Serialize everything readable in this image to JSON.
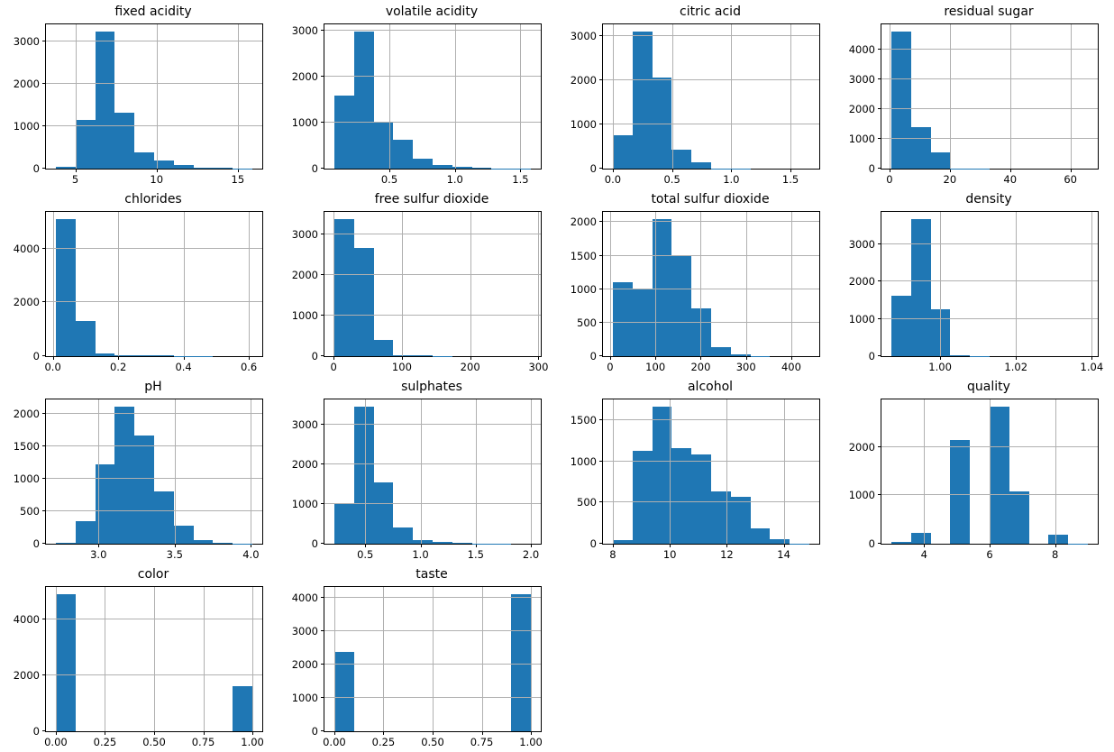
{
  "figure": {
    "background": "#ffffff",
    "grid_rows": 4,
    "grid_cols": 4
  },
  "style": {
    "bar_color": "#1f77b4",
    "grid_color": "#b0b0b0",
    "spine_color": "#000000",
    "text_color": "#000000"
  },
  "chart_data": [
    {
      "type": "histogram",
      "title": "fixed acidity",
      "bin_start": 3.8,
      "bin_width": 1.21,
      "counts": [
        46,
        1147,
        3250,
        1330,
        380,
        183,
        80,
        30,
        12,
        5
      ],
      "xlim": [
        3.195,
        16.505
      ],
      "ylim": [
        0,
        3412
      ],
      "xticks": [
        5,
        10,
        15
      ],
      "xtick_labels": [
        "5",
        "10",
        "15"
      ],
      "yticks": [
        0,
        1000,
        2000,
        3000
      ],
      "ytick_labels": [
        "0",
        "1000",
        "2000",
        "3000"
      ],
      "grid": true
    },
    {
      "type": "histogram",
      "title": "volatile acidity",
      "bin_start": 0.08,
      "bin_width": 0.15,
      "counts": [
        1590,
        2980,
        990,
        620,
        220,
        75,
        30,
        15,
        5,
        3
      ],
      "xlim": [
        0.005,
        1.655
      ],
      "ylim": [
        0,
        3129
      ],
      "xticks": [
        0.5,
        1.0,
        1.5
      ],
      "xtick_labels": [
        "0.5",
        "1.0",
        "1.5"
      ],
      "yticks": [
        0,
        1000,
        2000,
        3000
      ],
      "ytick_labels": [
        "0",
        "1000",
        "2000",
        "3000"
      ],
      "grid": true
    },
    {
      "type": "histogram",
      "title": "citric acid",
      "bin_start": 0.0,
      "bin_width": 0.166,
      "counts": [
        760,
        3110,
        2060,
        430,
        140,
        6,
        2,
        1,
        0,
        1
      ],
      "xlim": [
        -0.083,
        1.743
      ],
      "ylim": [
        0,
        3266
      ],
      "xticks": [
        0.0,
        0.5,
        1.0,
        1.5
      ],
      "xtick_labels": [
        "0.0",
        "0.5",
        "1.0",
        "1.5"
      ],
      "yticks": [
        0,
        1000,
        2000,
        3000
      ],
      "ytick_labels": [
        "0",
        "1000",
        "2000",
        "3000"
      ],
      "grid": true
    },
    {
      "type": "histogram",
      "title": "residual sugar",
      "bin_start": 0.6,
      "bin_width": 6.52,
      "counts": [
        4630,
        1400,
        550,
        12,
        3,
        1,
        0,
        0,
        0,
        1
      ],
      "xlim": [
        -2.66,
        69.06
      ],
      "ylim": [
        0,
        4862
      ],
      "xticks": [
        0,
        20,
        40,
        60
      ],
      "xtick_labels": [
        "0",
        "20",
        "40",
        "60"
      ],
      "yticks": [
        0,
        1000,
        2000,
        3000,
        4000
      ],
      "ytick_labels": [
        "0",
        "1000",
        "2000",
        "3000",
        "4000"
      ],
      "grid": true
    },
    {
      "type": "histogram",
      "title": "chlorides",
      "bin_start": 0.009,
      "bin_width": 0.0602,
      "counts": [
        5100,
        1290,
        105,
        35,
        25,
        18,
        12,
        4,
        2,
        1
      ],
      "xlim": [
        -0.0211,
        0.6411
      ],
      "ylim": [
        0,
        5355
      ],
      "xticks": [
        0.0,
        0.2,
        0.4,
        0.6
      ],
      "xtick_labels": [
        "0.0",
        "0.2",
        "0.4",
        "0.6"
      ],
      "yticks": [
        0,
        2000,
        4000
      ],
      "ytick_labels": [
        "0",
        "2000",
        "4000"
      ],
      "grid": true
    },
    {
      "type": "histogram",
      "title": "free sulfur dioxide",
      "bin_start": 1.0,
      "bin_width": 28.8,
      "counts": [
        3390,
        2670,
        410,
        28,
        25,
        2,
        1,
        0,
        0,
        1
      ],
      "xlim": [
        -13.4,
        303.4
      ],
      "ylim": [
        0,
        3560
      ],
      "xticks": [
        0,
        100,
        200,
        300
      ],
      "xtick_labels": [
        "0",
        "100",
        "200",
        "300"
      ],
      "yticks": [
        0,
        1000,
        2000,
        3000
      ],
      "ytick_labels": [
        "0",
        "1000",
        "2000",
        "3000"
      ],
      "grid": true
    },
    {
      "type": "histogram",
      "title": "total sulfur dioxide",
      "bin_start": 6.0,
      "bin_width": 43.4,
      "counts": [
        1100,
        990,
        2050,
        1510,
        720,
        140,
        22,
        2,
        0,
        1
      ],
      "xlim": [
        -15.7,
        461.7
      ],
      "ylim": [
        0,
        2153
      ],
      "xticks": [
        0,
        100,
        200,
        300,
        400
      ],
      "xtick_labels": [
        "0",
        "100",
        "200",
        "300",
        "400"
      ],
      "yticks": [
        0,
        500,
        1000,
        1500,
        2000
      ],
      "ytick_labels": [
        "0",
        "500",
        "1000",
        "1500",
        "2000"
      ],
      "grid": true
    },
    {
      "type": "histogram",
      "title": "density",
      "bin_start": 0.98711,
      "bin_width": 0.005187,
      "counts": [
        1620,
        3680,
        1260,
        35,
        3,
        1,
        0,
        0,
        0,
        1
      ],
      "xlim": [
        0.98452,
        1.04158
      ],
      "ylim": [
        0,
        3864
      ],
      "xticks": [
        1.0,
        1.02,
        1.04
      ],
      "xtick_labels": [
        "1.00",
        "1.02",
        "1.04"
      ],
      "yticks": [
        0,
        1000,
        2000,
        3000
      ],
      "ytick_labels": [
        "0",
        "1000",
        "2000",
        "3000"
      ],
      "grid": true
    },
    {
      "type": "histogram",
      "title": "pH",
      "bin_start": 2.72,
      "bin_width": 0.129,
      "counts": [
        20,
        350,
        1230,
        2120,
        1670,
        810,
        280,
        60,
        20,
        5
      ],
      "xlim": [
        2.6555,
        4.0745
      ],
      "ylim": [
        0,
        2226
      ],
      "xticks": [
        3.0,
        3.5,
        4.0
      ],
      "xtick_labels": [
        "3.0",
        "3.5",
        "4.0"
      ],
      "yticks": [
        0,
        500,
        1000,
        1500,
        2000
      ],
      "ytick_labels": [
        "0",
        "500",
        "1000",
        "1500",
        "2000"
      ],
      "grid": true
    },
    {
      "type": "histogram",
      "title": "sulphates",
      "bin_start": 0.22,
      "bin_width": 0.178,
      "counts": [
        1030,
        3470,
        1560,
        410,
        85,
        40,
        12,
        5,
        2,
        1
      ],
      "xlim": [
        0.131,
        2.089
      ],
      "ylim": [
        0,
        3643
      ],
      "xticks": [
        0.5,
        1.0,
        1.5,
        2.0
      ],
      "xtick_labels": [
        "0.5",
        "1.0",
        "1.5",
        "2.0"
      ],
      "yticks": [
        0,
        1000,
        2000,
        3000
      ],
      "ytick_labels": [
        "0",
        "1000",
        "2000",
        "3000"
      ],
      "grid": true
    },
    {
      "type": "histogram",
      "title": "alcohol",
      "bin_start": 8.0,
      "bin_width": 0.69,
      "counts": [
        40,
        1130,
        1670,
        1160,
        1090,
        640,
        570,
        190,
        50,
        3
      ],
      "xlim": [
        7.655,
        15.245
      ],
      "ylim": [
        0,
        1753
      ],
      "xticks": [
        8,
        10,
        12,
        14
      ],
      "xtick_labels": [
        "8",
        "10",
        "12",
        "14"
      ],
      "yticks": [
        0,
        500,
        1000,
        1500
      ],
      "ytick_labels": [
        "0",
        "500",
        "1000",
        "1500"
      ],
      "grid": true
    },
    {
      "type": "histogram",
      "title": "quality",
      "bin_start": 3.0,
      "bin_width": 0.6,
      "counts": [
        30,
        216,
        0,
        2138,
        0,
        2836,
        1079,
        0,
        193,
        5
      ],
      "xlim": [
        2.7,
        9.3
      ],
      "ylim": [
        0,
        2978
      ],
      "xticks": [
        4,
        6,
        8
      ],
      "xtick_labels": [
        "4",
        "6",
        "8"
      ],
      "yticks": [
        0,
        1000,
        2000
      ],
      "ytick_labels": [
        "0",
        "1000",
        "2000"
      ],
      "grid": true
    },
    {
      "type": "histogram",
      "title": "color",
      "bin_start": 0.0,
      "bin_width": 0.1,
      "counts": [
        4898,
        0,
        0,
        0,
        0,
        0,
        0,
        0,
        0,
        1599
      ],
      "xlim": [
        -0.05,
        1.05
      ],
      "ylim": [
        0,
        5143
      ],
      "xticks": [
        0.0,
        0.25,
        0.5,
        0.75,
        1.0
      ],
      "xtick_labels": [
        "0.00",
        "0.25",
        "0.50",
        "0.75",
        "1.00"
      ],
      "yticks": [
        0,
        2000,
        4000
      ],
      "ytick_labels": [
        "0",
        "2000",
        "4000"
      ],
      "grid": true
    },
    {
      "type": "histogram",
      "title": "taste",
      "bin_start": 0.0,
      "bin_width": 0.1,
      "counts": [
        2384,
        0,
        0,
        0,
        0,
        0,
        0,
        0,
        0,
        4113
      ],
      "xlim": [
        -0.05,
        1.05
      ],
      "ylim": [
        0,
        4319
      ],
      "xticks": [
        0.0,
        0.25,
        0.5,
        0.75,
        1.0
      ],
      "xtick_labels": [
        "0.00",
        "0.25",
        "0.50",
        "0.75",
        "1.00"
      ],
      "yticks": [
        0,
        1000,
        2000,
        3000,
        4000
      ],
      "ytick_labels": [
        "0",
        "1000",
        "2000",
        "3000",
        "4000"
      ],
      "grid": true
    }
  ]
}
